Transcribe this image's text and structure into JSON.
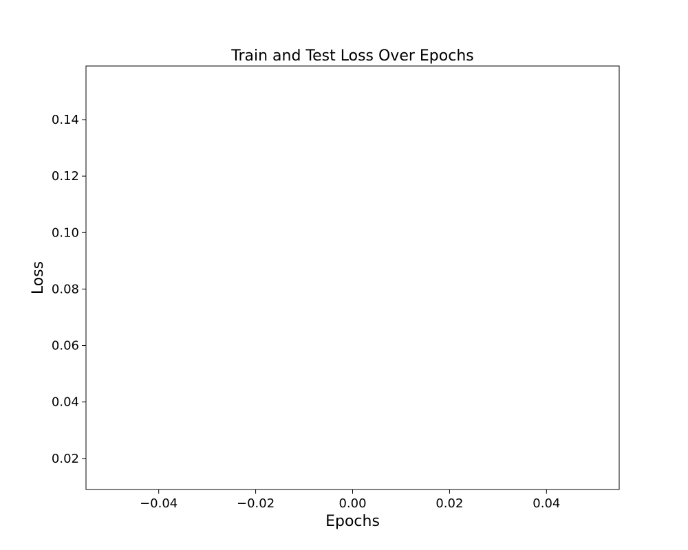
{
  "chart_data": {
    "type": "line",
    "title": "Train and Test Loss Over Epochs",
    "xlabel": "Epochs",
    "ylabel": "Loss",
    "xlim": [
      -0.055,
      0.055
    ],
    "ylim": [
      0.009,
      0.159
    ],
    "x_ticks": [
      -0.04,
      -0.02,
      0.0,
      0.02,
      0.04
    ],
    "x_tick_labels": [
      "−0.04",
      "−0.02",
      "0.00",
      "0.02",
      "0.04"
    ],
    "y_ticks": [
      0.02,
      0.04,
      0.06,
      0.08,
      0.1,
      0.12,
      0.14
    ],
    "y_tick_labels": [
      "0.02",
      "0.04",
      "0.06",
      "0.08",
      "0.10",
      "0.12",
      "0.14"
    ],
    "series": [],
    "grid": false,
    "colors": {
      "axis": "#000000",
      "background": "#ffffff"
    }
  }
}
